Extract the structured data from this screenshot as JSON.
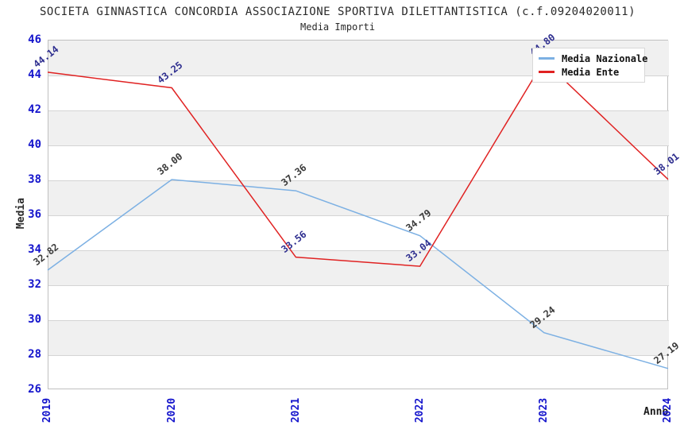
{
  "title": "SOCIETA GINNASTICA CONCORDIA ASSOCIAZIONE SPORTIVA DILETTANTISTICA (c.f.09204020011)",
  "subtitle": "Media Importi",
  "axes": {
    "y_label": "Media",
    "x_label": "Anno",
    "y_ticks": [
      "46",
      "44",
      "42",
      "40",
      "38",
      "36",
      "34",
      "32",
      "30",
      "28",
      "26"
    ],
    "x_ticks": [
      "2019",
      "2020",
      "2021",
      "2022",
      "2023",
      "2024"
    ]
  },
  "legend": {
    "entries": [
      {
        "label": "Media Nazionale",
        "color": "#7cb0e3"
      },
      {
        "label": "Media Ente",
        "color": "#e02222"
      }
    ]
  },
  "colors": {
    "band": "#f0f0f0",
    "grid": "#d4d4d4",
    "plot_border": "#c0c0c0",
    "tick_label": "#1414cc",
    "title_text": "#2a2a2a"
  },
  "chart_data": {
    "type": "line",
    "title": "SOCIETA GINNASTICA CONCORDIA ASSOCIAZIONE SPORTIVA DILETTANTISTICA (c.f.09204020011)",
    "subtitle": "Media Importi",
    "xlabel": "Anno",
    "ylabel": "Media",
    "ylim": [
      26,
      46
    ],
    "grid": "horizontal",
    "legend_position": "top-right",
    "categories": [
      "2019",
      "2020",
      "2021",
      "2022",
      "2023",
      "2024"
    ],
    "series": [
      {
        "name": "Media Nazionale",
        "color": "#7cb0e3",
        "label_color": "#3a3a3a",
        "values": [
          32.82,
          38.0,
          37.36,
          34.79,
          29.24,
          27.19
        ],
        "labels": [
          "32.82",
          "38.00",
          "37.36",
          "34.79",
          "29.24",
          "27.19"
        ]
      },
      {
        "name": "Media Ente",
        "color": "#e02222",
        "label_color": "#2e2e8f",
        "values": [
          44.14,
          43.25,
          33.56,
          33.04,
          44.8,
          38.01
        ],
        "labels": [
          "44.14",
          "43.25",
          "33.56",
          "33.04",
          "44.80",
          "38.01"
        ]
      }
    ]
  }
}
